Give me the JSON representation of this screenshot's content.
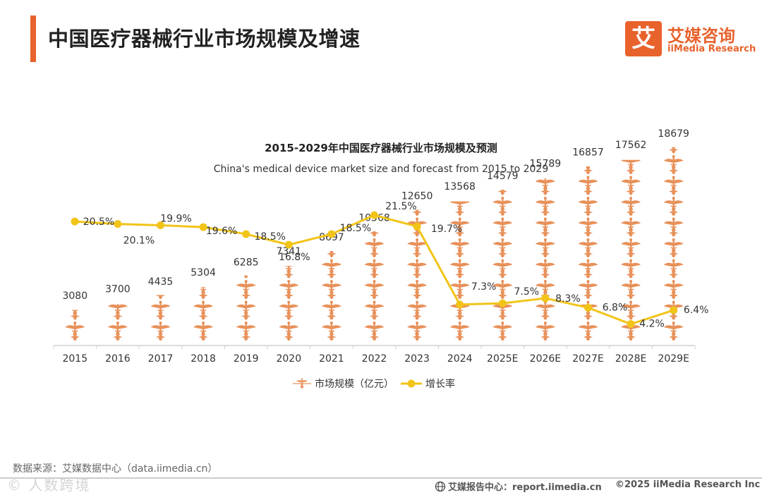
{
  "header": {
    "title": "中国医疗器械行业市场规模及增速"
  },
  "logo": {
    "mark": "艾",
    "name_cn": "艾媒咨询",
    "name_en": "iiMedia Research"
  },
  "colors": {
    "accent": "#e8622c",
    "bar_icon": "#e8915a",
    "line": "#f2c418",
    "text": "#333333",
    "axis": "#d0d0d0"
  },
  "chart_data": {
    "type": "bar",
    "title": "2015-2029年中国医疗器械行业市场规模及预测",
    "subtitle": "China's medical device market size and forecast from 2015 to 2029",
    "categories": [
      "2015",
      "2016",
      "2017",
      "2018",
      "2019",
      "2020",
      "2021",
      "2022",
      "2023",
      "2024",
      "2025E",
      "2026E",
      "2027E",
      "2028E",
      "2029E"
    ],
    "series": [
      {
        "name": "市场规模（亿元）",
        "kind": "pictorial-bar",
        "icon": "caduceus-icon",
        "values": [
          3080,
          3700,
          4435,
          5304,
          6285,
          7341,
          8697,
          10568,
          12650,
          13568,
          14579,
          15789,
          16857,
          17562,
          18679
        ],
        "labels": [
          "3080",
          "3700",
          "4435",
          "5304",
          "6285",
          "7341",
          "8697",
          "10568",
          "12650",
          "13568",
          "14579",
          "15789",
          "16857",
          "17562",
          "18679"
        ],
        "unit_per_icon": 2000
      },
      {
        "name": "增长率",
        "kind": "line",
        "axis": "secondary",
        "values": [
          20.5,
          20.1,
          19.9,
          19.6,
          18.5,
          16.8,
          18.5,
          21.5,
          19.7,
          7.3,
          7.5,
          8.3,
          6.8,
          4.2,
          6.4
        ],
        "labels": [
          "20.5%",
          "20.1%",
          "19.9%",
          "19.6%",
          "18.5%",
          "16.8%",
          "18.5%",
          "21.5%",
          "19.7%",
          "7.3%",
          "7.5%",
          "8.3%",
          "6.8%",
          "4.2%",
          "6.4%"
        ]
      }
    ],
    "ylim": [
      0,
      20000
    ],
    "y2lim": [
      -9.3,
      23.2
    ],
    "grid": false,
    "legend": "bottom-center"
  },
  "footer": {
    "source": "数据来源：艾媒数据中心（data.iimedia.cn）",
    "watermark": "©  人数跨境",
    "report": "艾媒报告中心：report.iimedia.cn",
    "copyright": "©2025  iiMedia Research  Inc"
  }
}
